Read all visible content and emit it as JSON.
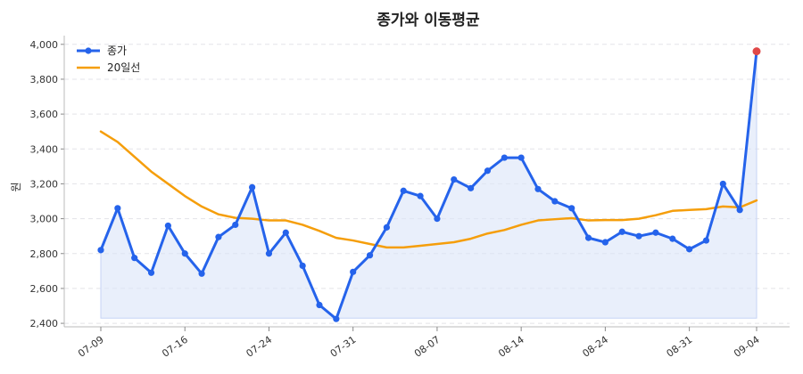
{
  "chart_data": {
    "type": "line",
    "title": "종가와 이동평균",
    "xlabel": "",
    "ylabel": "원",
    "ylim": [
      2380,
      4050
    ],
    "y_ticks": [
      2400,
      2600,
      2800,
      3000,
      3200,
      3400,
      3600,
      3800,
      4000
    ],
    "y_tick_labels": [
      "2,400",
      "2,600",
      "2,800",
      "3,000",
      "3,200",
      "3,400",
      "3,600",
      "3,800",
      "4,000"
    ],
    "x_tick_labels": [
      "07-09",
      "07-16",
      "07-24",
      "07-31",
      "08-07",
      "08-14",
      "08-24",
      "08-31",
      "09-04"
    ],
    "x_tick_indices": [
      0,
      5,
      10,
      15,
      20,
      25,
      30,
      35,
      39
    ],
    "grid": true,
    "legend_position": "top-left",
    "series": [
      {
        "name": "종가",
        "color": "#2563eb",
        "style": "line-markers-area",
        "values": [
          2820,
          3060,
          2775,
          2690,
          2960,
          2800,
          2685,
          2895,
          2965,
          3180,
          2800,
          2920,
          2730,
          2505,
          2425,
          2695,
          2790,
          2950,
          3160,
          3130,
          3000,
          3225,
          3175,
          3275,
          3350,
          3350,
          3170,
          3100,
          3060,
          2890,
          2865,
          2925,
          2900,
          2920,
          2885,
          2825,
          2875,
          3200,
          3050,
          3960
        ]
      },
      {
        "name": "20일선",
        "color": "#f59e0b",
        "style": "line",
        "values": [
          3500,
          3440,
          3355,
          3270,
          3200,
          3130,
          3070,
          3025,
          3005,
          3000,
          2990,
          2990,
          2965,
          2930,
          2890,
          2875,
          2855,
          2835,
          2835,
          2845,
          2855,
          2865,
          2885,
          2915,
          2935,
          2965,
          2990,
          2997,
          3003,
          2990,
          2992,
          2992,
          3000,
          3020,
          3045,
          3050,
          3055,
          3070,
          3065,
          3105
        ]
      }
    ],
    "highlight": {
      "index": 39,
      "value": 3960,
      "color": "#e04848"
    }
  }
}
